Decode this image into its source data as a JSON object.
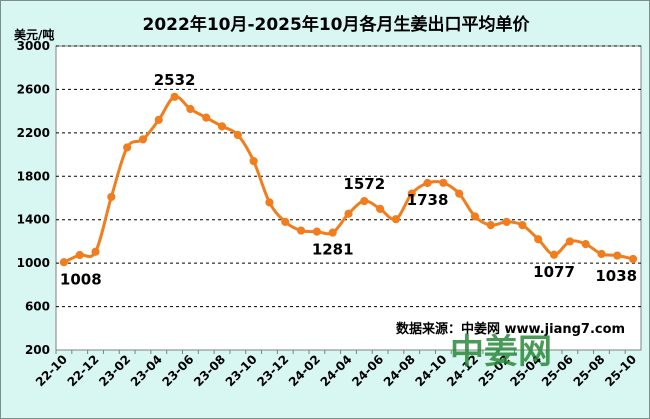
{
  "chart_data": {
    "type": "line",
    "title": "2022年10月-2025年10月各月生姜出口平均单价",
    "ylabel": "美元/吨",
    "xlabel": "",
    "ylim": [
      200,
      3000
    ],
    "yticks": [
      200,
      600,
      1000,
      1400,
      1800,
      2200,
      2600,
      3000
    ],
    "x": [
      "22-10",
      "22-11",
      "22-12",
      "23-01",
      "23-02",
      "23-03",
      "23-04",
      "23-05",
      "23-06",
      "23-07",
      "23-08",
      "23-09",
      "23-10",
      "23-11",
      "23-12",
      "24-01",
      "24-02",
      "24-03",
      "24-04",
      "24-05",
      "24-06",
      "24-07",
      "24-08",
      "24-09",
      "24-10",
      "24-11",
      "24-12",
      "25-01",
      "25-02",
      "25-03",
      "25-04",
      "25-05",
      "25-06",
      "25-07",
      "25-08",
      "25-09",
      "25-10"
    ],
    "xtick_labels": [
      "22-10",
      "22-12",
      "23-02",
      "23-04",
      "23-06",
      "23-08",
      "23-10",
      "23-12",
      "24-02",
      "24-04",
      "24-06",
      "24-08",
      "24-10",
      "24-12",
      "25-02",
      "25-04",
      "25-06",
      "25-08",
      "25-10"
    ],
    "series": [
      {
        "values": [
          1008,
          1075,
          1105,
          1610,
          2065,
          2140,
          2320,
          2532,
          2420,
          2340,
          2260,
          2180,
          1940,
          1560,
          1380,
          1300,
          1290,
          1281,
          1455,
          1572,
          1500,
          1405,
          1640,
          1738,
          1740,
          1640,
          1430,
          1350,
          1380,
          1350,
          1220,
          1077,
          1200,
          1175,
          1085,
          1070,
          1038
        ],
        "color": "#f07e1e"
      }
    ],
    "data_labels": [
      {
        "index": 0,
        "text": "1008"
      },
      {
        "index": 7,
        "text": "2532"
      },
      {
        "index": 17,
        "text": "1281"
      },
      {
        "index": 19,
        "text": "1572"
      },
      {
        "index": 23,
        "text": "1738"
      },
      {
        "index": 31,
        "text": "1077"
      },
      {
        "index": 36,
        "text": "1038"
      }
    ],
    "grid": true,
    "annotation": "数据来源：中姜网 www.jiang7.com",
    "watermark": "中姜网",
    "colors": {
      "background": "#d8f7f2",
      "plot_background": "#ffffff",
      "line": "#f07e1e",
      "grid": "#000000"
    }
  }
}
